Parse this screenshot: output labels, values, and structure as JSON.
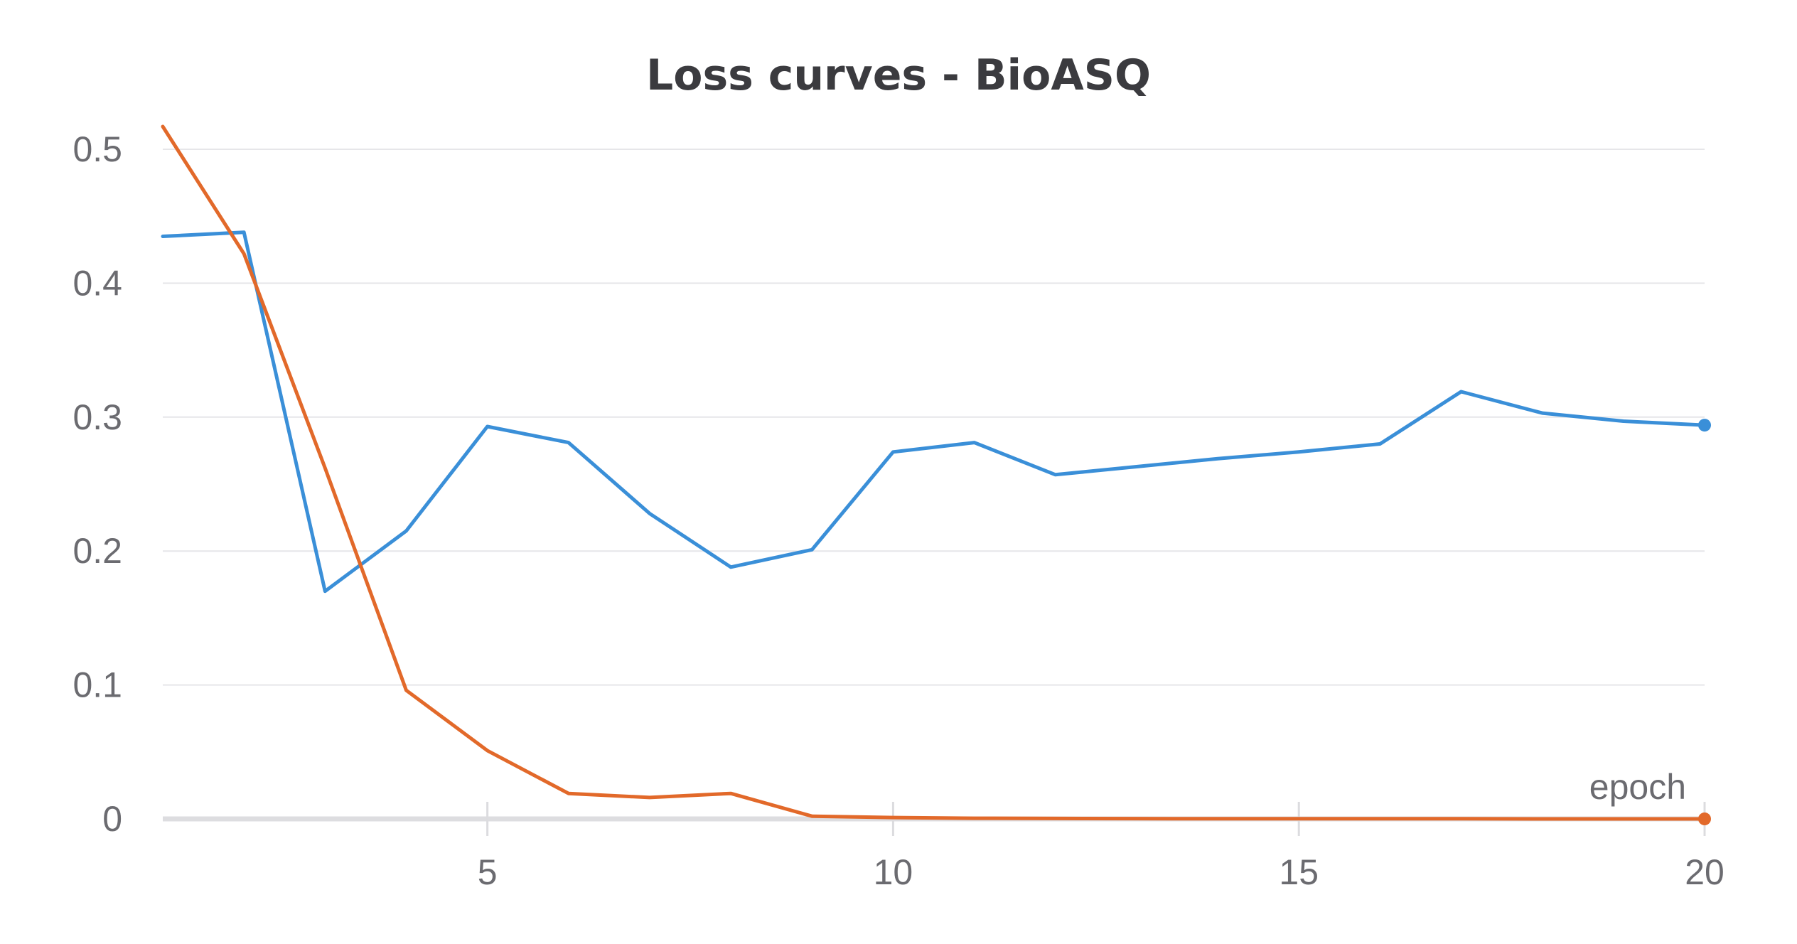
{
  "chart_data": {
    "type": "line",
    "title": "Loss curves - BioASQ",
    "xlabel": "epoch",
    "ylabel": "",
    "xlim": [
      1,
      20
    ],
    "ylim": [
      0,
      0.5
    ],
    "x_ticks": [
      5,
      10,
      15,
      20
    ],
    "y_ticks": [
      0,
      0.1,
      0.2,
      0.3,
      0.4,
      0.5
    ],
    "grid": true,
    "legend": "none",
    "x": [
      1,
      2,
      3,
      4,
      5,
      6,
      7,
      8,
      9,
      10,
      11,
      12,
      13,
      14,
      15,
      16,
      17,
      18,
      19,
      20
    ],
    "series": [
      {
        "color": "#3a8fd8",
        "values": [
          0.435,
          0.438,
          0.17,
          0.215,
          0.293,
          0.281,
          0.228,
          0.188,
          0.201,
          0.274,
          0.281,
          0.257,
          0.263,
          0.269,
          0.274,
          0.28,
          0.319,
          0.303,
          0.297,
          0.294
        ]
      },
      {
        "color": "#e2692a",
        "values": [
          0.517,
          0.422,
          0.262,
          0.096,
          0.051,
          0.019,
          0.016,
          0.019,
          0.002,
          0.001,
          0.0005,
          0.0003,
          0.0002,
          0.0001,
          0.0001,
          0.0001,
          0.0001,
          0.0,
          0.0,
          0.0
        ]
      }
    ]
  }
}
